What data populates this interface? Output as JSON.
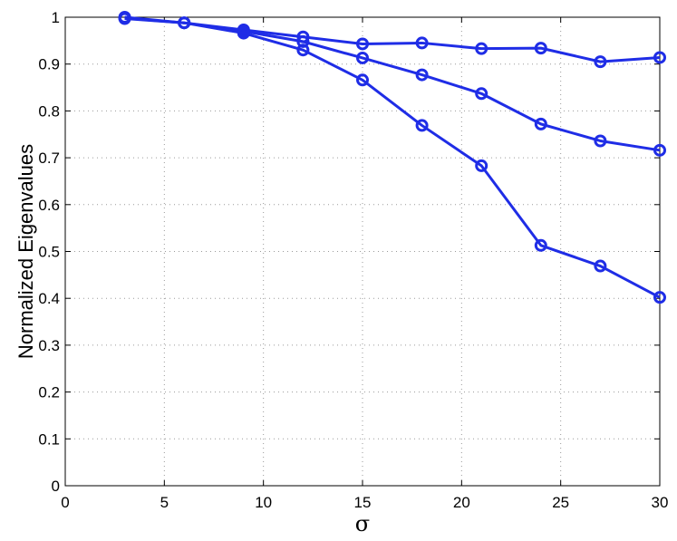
{
  "chart_data": {
    "type": "line",
    "xlabel": "σ",
    "ylabel": "Normalized Eigenvalues",
    "xlim": [
      0,
      30
    ],
    "ylim": [
      0,
      1
    ],
    "xticks": [
      0,
      5,
      10,
      15,
      20,
      25,
      30
    ],
    "yticks": [
      0,
      0.1,
      0.2,
      0.3,
      0.4,
      0.5,
      0.6,
      0.7,
      0.8,
      0.9,
      1
    ],
    "grid": true,
    "legend": "none",
    "marker": "circle",
    "color": "#1f2de6",
    "series": [
      {
        "x": [
          3,
          6,
          9,
          12,
          15,
          18,
          21,
          24,
          27,
          30
        ],
        "values": [
          1.0,
          0.988,
          0.973,
          0.958,
          0.943,
          0.945,
          0.933,
          0.934,
          0.905,
          0.914
        ]
      },
      {
        "x": [
          3,
          6,
          9,
          12,
          15,
          18,
          21,
          24,
          27,
          30
        ],
        "values": [
          0.998,
          0.988,
          0.97,
          0.948,
          0.913,
          0.877,
          0.837,
          0.772,
          0.736,
          0.716
        ]
      },
      {
        "x": [
          3,
          6,
          9,
          12,
          15,
          18,
          21,
          24,
          27,
          30
        ],
        "values": [
          0.997,
          0.988,
          0.966,
          0.93,
          0.866,
          0.769,
          0.683,
          0.513,
          0.469,
          0.402
        ]
      }
    ]
  }
}
